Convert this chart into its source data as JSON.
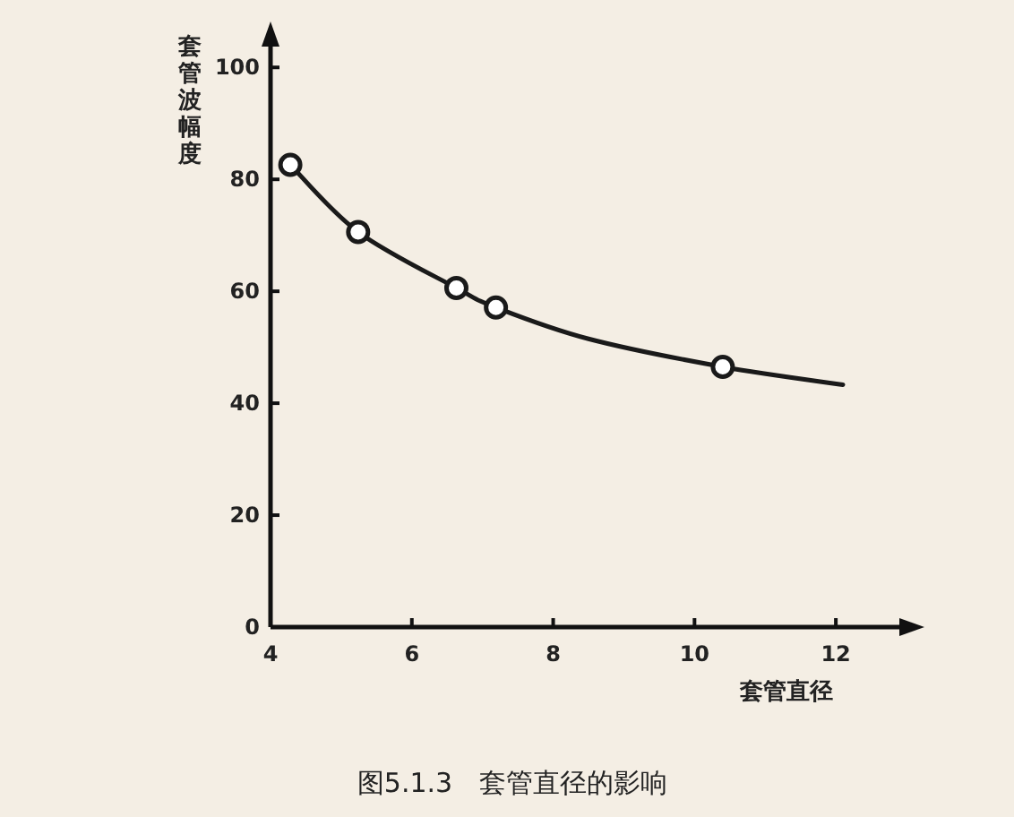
{
  "chart_data": {
    "type": "line",
    "title": "图5.1.3　套管直径的影响",
    "xlabel": "套管直径",
    "ylabel": "套管波幅度",
    "xlim": [
      4,
      13
    ],
    "xticks": [
      4,
      6,
      8,
      10,
      12
    ],
    "ylim": [
      0,
      105
    ],
    "yticks": [
      0,
      20,
      40,
      60,
      80,
      100
    ],
    "grid": false,
    "series": [
      {
        "color": "#1a1a1a",
        "marker": "none",
        "line_style": "solid",
        "x": [
          4.28,
          5.24,
          6.63,
          7.19,
          8.5,
          10.4,
          12.1
        ],
        "values": [
          82.6,
          70.6,
          60.6,
          57.1,
          51.5,
          46.5,
          43.3
        ]
      },
      {
        "type": "scatter",
        "color": "#1a1a1a",
        "marker": "circle",
        "x": [
          4.28,
          5.24,
          6.63,
          7.19,
          10.4
        ],
        "values": [
          82.6,
          70.6,
          60.6,
          57.1,
          46.5
        ]
      }
    ]
  }
}
